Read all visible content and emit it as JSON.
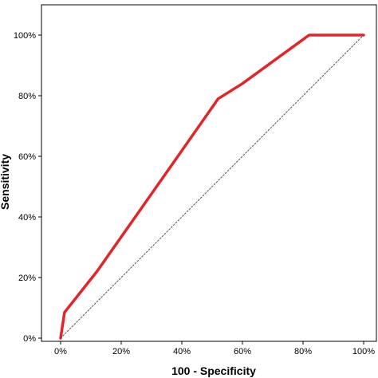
{
  "chart_data": {
    "type": "line",
    "title": "",
    "xlabel": "100 - Specificity",
    "ylabel": "Sensitivity",
    "xlim": [
      0,
      100
    ],
    "ylim": [
      0,
      100
    ],
    "x_ticks": [
      "0%",
      "20%",
      "40%",
      "60%",
      "80%",
      "100%"
    ],
    "y_ticks": [
      "0%",
      "20%",
      "40%",
      "60%",
      "80%",
      "100%"
    ],
    "grid": false,
    "legend": "none",
    "series": [
      {
        "role": "roc-curve",
        "color": "#e0262b",
        "line_style": "solid",
        "x": [
          0,
          1.3,
          12,
          38,
          52,
          60,
          82,
          100
        ],
        "y": [
          0,
          8.5,
          22,
          59,
          79,
          84,
          100,
          100
        ]
      },
      {
        "role": "reference-diagonal",
        "color": "#555555",
        "line_style": "dotted",
        "x": [
          0,
          100
        ],
        "y": [
          0,
          100
        ]
      }
    ]
  }
}
